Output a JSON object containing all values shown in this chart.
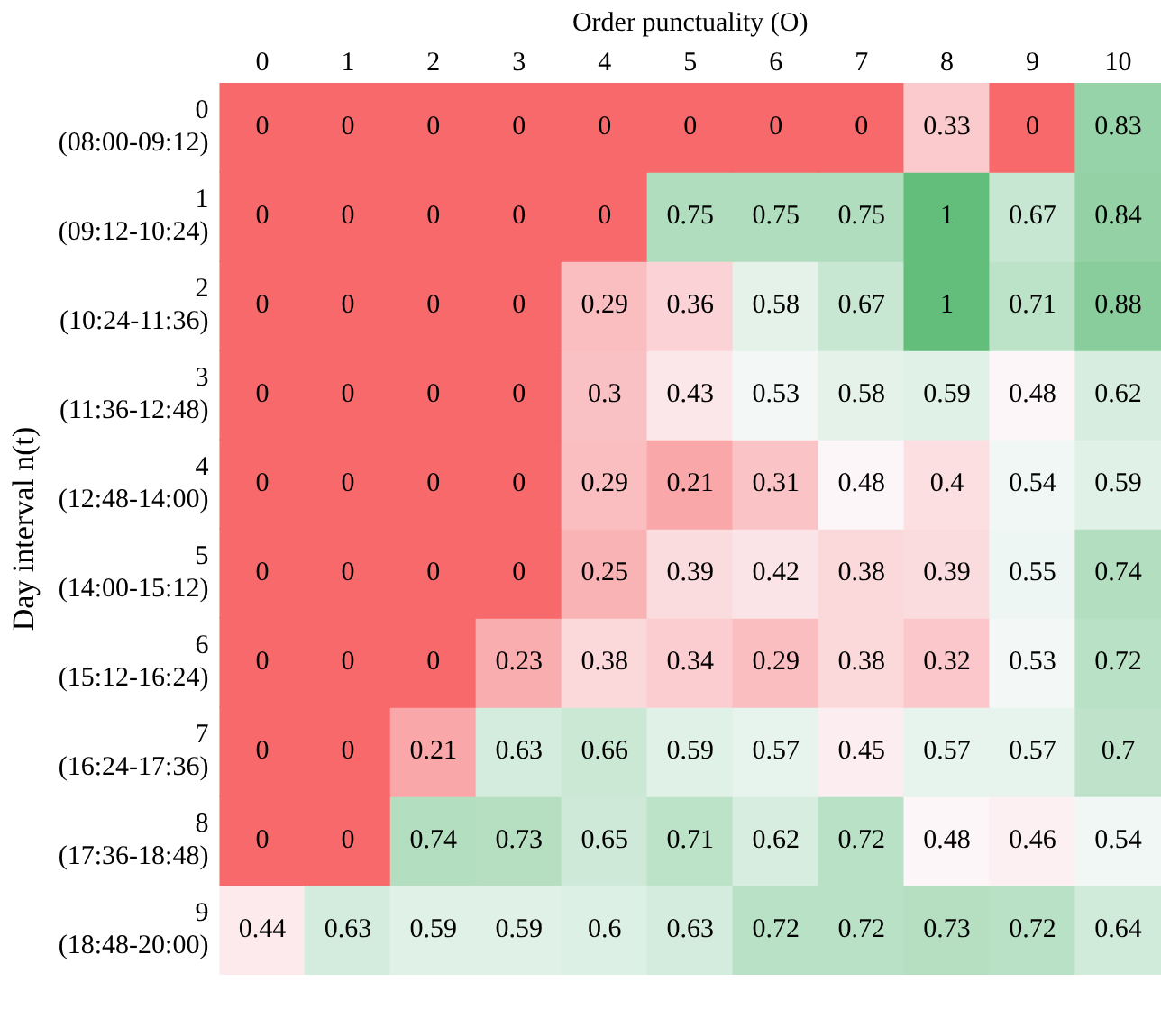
{
  "chart_data": {
    "type": "heatmap",
    "xlabel": "Order punctuality (O)",
    "ylabel": "Day interval n(t)",
    "categories": [
      "0",
      "1",
      "2",
      "3",
      "4",
      "5",
      "6",
      "7",
      "8",
      "9",
      "10"
    ],
    "y_categories": [
      "0\n(08:00-09:12)",
      "1\n(09:12-10:24)",
      "2\n(10:24-11:36)",
      "3\n(11:36-12:48)",
      "4\n(12:48-14:00)",
      "5\n(14:00-15:12)",
      "6\n(15:12-16:24)",
      "7\n(16:24-17:36)",
      "8\n(17:36-18:48)",
      "9\n(18:48-20:00)"
    ],
    "colors": [
      "#f8696b",
      "#fcfcff",
      "#63be7b"
    ],
    "data_labels": true,
    "cells": [
      [
        0,
        0,
        0,
        0,
        0,
        0,
        0,
        0,
        0.33,
        0,
        0.83
      ],
      [
        0,
        0,
        0,
        0,
        0,
        0.75,
        0.75,
        0.75,
        1,
        0.67,
        0.84
      ],
      [
        0,
        0,
        0,
        0,
        0.29,
        0.36,
        0.58,
        0.67,
        1,
        0.71,
        0.88
      ],
      [
        0,
        0,
        0,
        0,
        0.3,
        0.43,
        0.53,
        0.58,
        0.59,
        0.48,
        0.62
      ],
      [
        0,
        0,
        0,
        0,
        0.29,
        0.21,
        0.31,
        0.48,
        0.4,
        0.54,
        0.59
      ],
      [
        0,
        0,
        0,
        0,
        0.25,
        0.39,
        0.42,
        0.38,
        0.39,
        0.55,
        0.74
      ],
      [
        0,
        0,
        0,
        0.23,
        0.38,
        0.34,
        0.29,
        0.38,
        0.32,
        0.53,
        0.72
      ],
      [
        0,
        0,
        0.21,
        0.63,
        0.66,
        0.59,
        0.57,
        0.45,
        0.57,
        0.57,
        0.7
      ],
      [
        0,
        0,
        0.74,
        0.73,
        0.65,
        0.71,
        0.62,
        0.72,
        0.48,
        0.46,
        0.54
      ],
      [
        0.44,
        0.63,
        0.59,
        0.59,
        0.6,
        0.63,
        0.72,
        0.72,
        0.73,
        0.72,
        0.64
      ]
    ]
  }
}
